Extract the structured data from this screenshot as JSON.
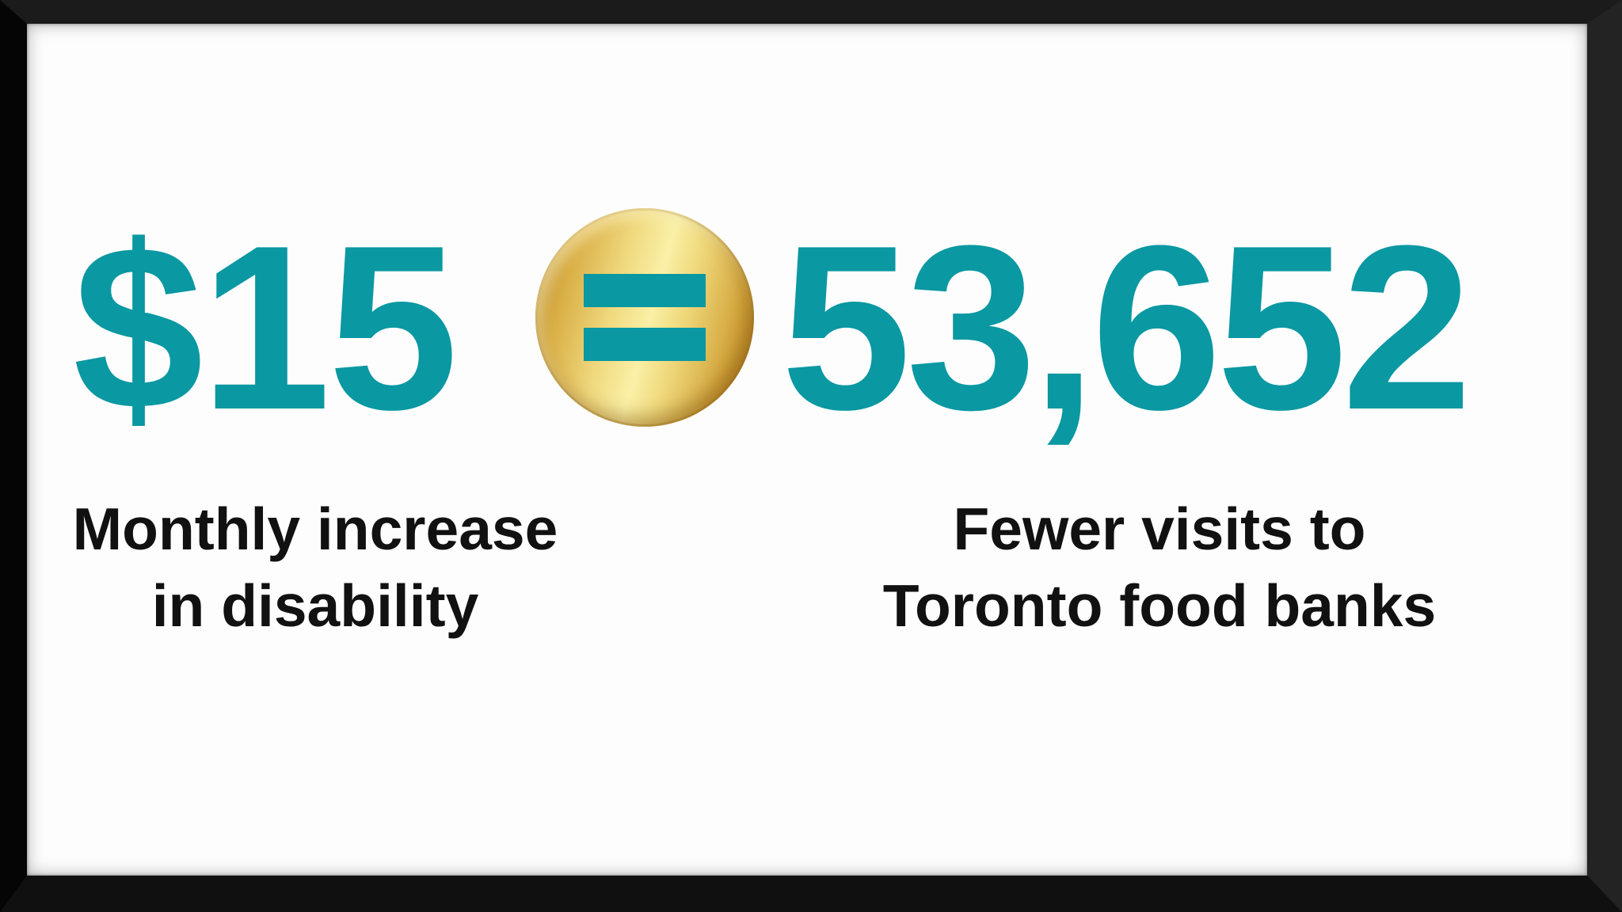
{
  "colors": {
    "teal": "#0A98A2",
    "text": "#111111",
    "background": "#FDFDFD",
    "frame": "#111111",
    "gold_light": "#FAF0A6",
    "gold_dark": "#A9771B"
  },
  "equation": {
    "left_value": "$15",
    "operator": "equals",
    "right_value": "53,652",
    "left_label": [
      "Monthly increase",
      "in disability"
    ],
    "right_label": [
      "Fewer visits to",
      "Toronto food banks"
    ]
  }
}
